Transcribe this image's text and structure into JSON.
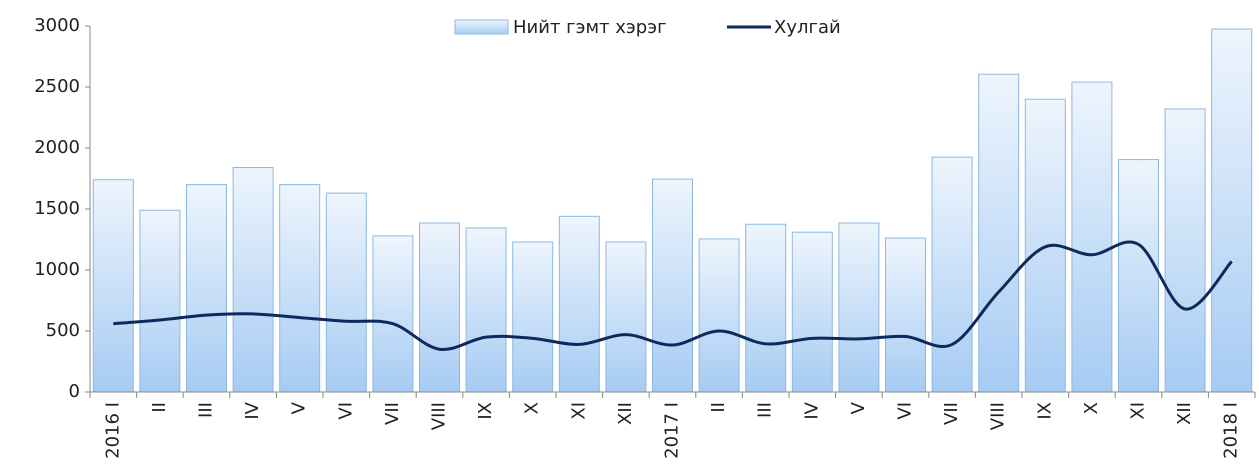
{
  "chart_data": {
    "type": "bar_line",
    "categories": [
      "2016 I",
      "II",
      "III",
      "IV",
      "V",
      "VI",
      "VII",
      "VIII",
      "IX",
      "X",
      "XI",
      "XII",
      "2017 I",
      "II",
      "III",
      "IV",
      "V",
      "VI",
      "VII",
      "VIII",
      "IX",
      "X",
      "XI",
      "XII",
      "2018 I"
    ],
    "series": [
      {
        "name": "Нийт гэмт хэрэг",
        "type": "bar",
        "color": "#a6cbf3",
        "values": [
          1740,
          1490,
          1700,
          1840,
          1700,
          1630,
          1280,
          1385,
          1345,
          1230,
          1440,
          1230,
          1745,
          1255,
          1375,
          1310,
          1385,
          1262,
          1925,
          2605,
          2400,
          2540,
          1905,
          2320,
          2975
        ]
      },
      {
        "name": "Хулгай",
        "type": "line",
        "color": "#0d2a5c",
        "values": [
          560,
          590,
          630,
          640,
          610,
          580,
          560,
          350,
          450,
          440,
          390,
          470,
          385,
          500,
          395,
          440,
          435,
          455,
          390,
          820,
          1190,
          1125,
          1210,
          680,
          1070
        ]
      }
    ],
    "ylim": [
      0,
      3000
    ],
    "yticks": [
      0,
      500,
      1000,
      1500,
      2000,
      2500,
      3000
    ],
    "grid": false,
    "legend": "top"
  }
}
